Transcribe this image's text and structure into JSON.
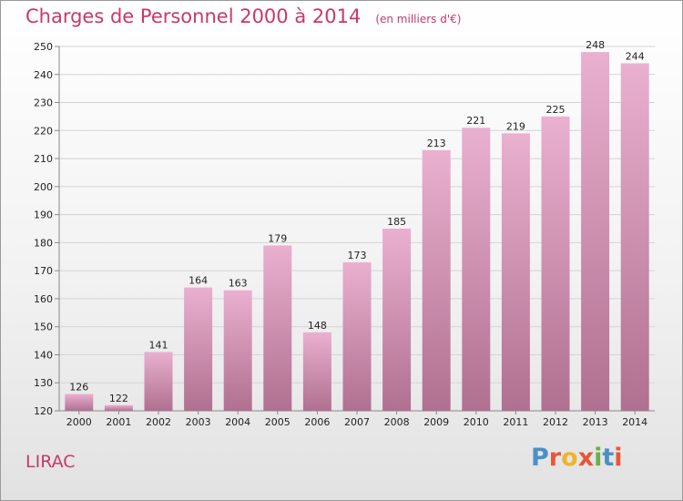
{
  "header": {
    "title": "Charges de Personnel 2000 à 2014",
    "subtitle": "(en milliers d'€)"
  },
  "footer": {
    "town": "LIRAC",
    "logo": "Proxiti"
  },
  "colors": {
    "title": "#c8396b",
    "bar_top": "#eab0cf",
    "bar_bottom": "#b07090",
    "logo": [
      "#4a90c8",
      "#e8563a",
      "#f0b429",
      "#e8563a",
      "#6ab04c",
      "#4a90c8",
      "#e8563a"
    ]
  },
  "chart_data": {
    "type": "bar",
    "title": "Charges de Personnel 2000 à 2014",
    "subtitle": "(en milliers d'€)",
    "categories": [
      "2000",
      "2001",
      "2002",
      "2003",
      "2004",
      "2005",
      "2006",
      "2007",
      "2008",
      "2009",
      "2010",
      "2011",
      "2012",
      "2013",
      "2014"
    ],
    "values": [
      126,
      122,
      141,
      164,
      163,
      179,
      148,
      173,
      185,
      213,
      221,
      219,
      225,
      248,
      244
    ],
    "ylim": [
      120,
      250
    ],
    "yticks": [
      120,
      130,
      140,
      150,
      160,
      170,
      180,
      190,
      200,
      210,
      220,
      230,
      240,
      250
    ],
    "grid": true
  }
}
